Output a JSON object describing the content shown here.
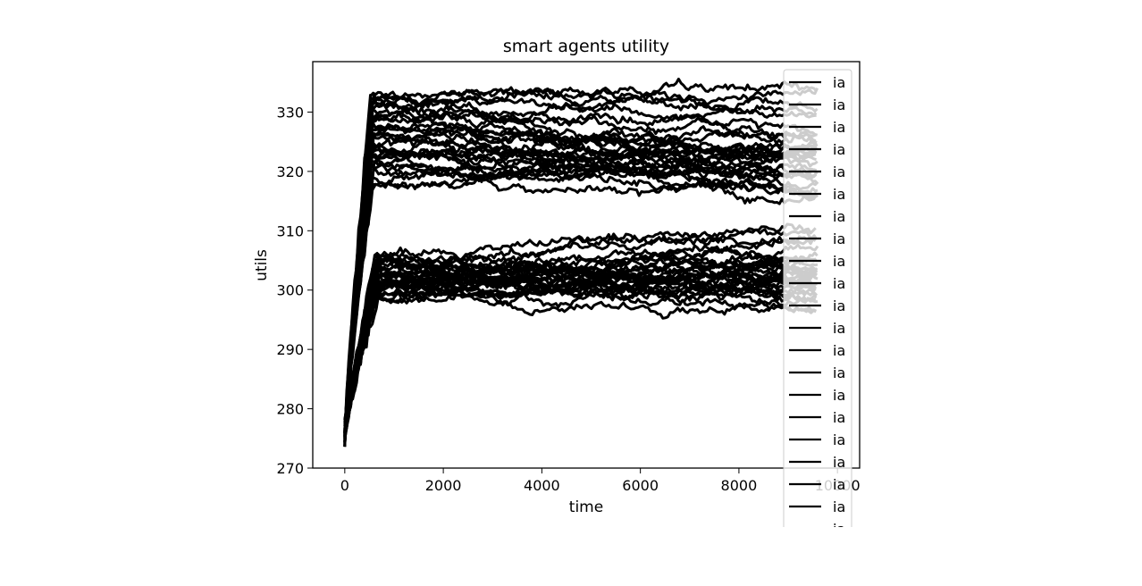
{
  "chart_data": {
    "type": "line",
    "title": "smart agents utility",
    "xlabel": "time",
    "ylabel": "utils",
    "xlim": [
      -650,
      10450
    ],
    "ylim": [
      270,
      338.5
    ],
    "xticks": [
      0,
      2000,
      4000,
      6000,
      8000,
      10000
    ],
    "yticks": [
      270,
      280,
      290,
      300,
      310,
      320,
      330
    ],
    "grid": false,
    "legend_position": "right (clipped)",
    "series_color": "#000000",
    "series_count": 60,
    "groups": [
      {
        "description": "high-utility agents",
        "start": 275,
        "rise_end_x": 550,
        "levels": [
          333,
          332.5,
          332,
          331.5,
          331,
          330.5,
          330,
          329.5,
          329,
          328.5,
          328,
          327.5,
          327,
          326.5,
          326,
          325.5,
          325,
          324.5,
          324,
          323.5,
          323,
          322.5,
          322,
          321.5,
          321,
          320.5,
          320,
          319,
          318,
          317
        ],
        "end_levels": [
          333.5,
          334,
          331,
          330,
          328,
          327,
          326,
          325.5,
          325,
          324,
          323.5,
          323,
          322.5,
          322,
          321.5,
          321,
          320.5,
          320,
          319.5,
          319,
          318.5,
          318,
          317.5,
          317,
          322,
          324,
          326,
          321,
          318,
          316
        ]
      },
      {
        "description": "low-utility agents",
        "start": 276,
        "rise_end_x": 650,
        "levels": [
          305.5,
          305,
          304.5,
          304,
          303.5,
          303,
          302.5,
          302,
          301.5,
          301,
          300.5,
          300,
          299.5,
          299,
          298.5,
          306,
          304,
          302,
          300,
          298.5,
          305,
          303,
          301,
          299.5,
          304.5,
          302.5,
          300.5,
          299,
          305.5,
          301.5
        ],
        "end_levels": [
          311,
          310,
          309,
          308,
          307,
          306,
          305,
          304,
          303.5,
          303,
          302.5,
          302,
          301.5,
          301,
          300.5,
          300,
          299.5,
          299,
          298.5,
          298,
          297.5,
          306.5,
          305.5,
          304.5,
          303.5,
          302.5,
          301.5,
          300.5,
          299.5,
          298
        ]
      }
    ],
    "legend": {
      "entries": [
        "ia",
        "ia",
        "ia",
        "ia",
        "ia",
        "ia",
        "ia",
        "ia",
        "ia",
        "ia",
        "ia",
        "ia",
        "ia",
        "ia",
        "ia",
        "ia",
        "ia",
        "ia",
        "ia",
        "ia",
        "ia"
      ]
    }
  }
}
